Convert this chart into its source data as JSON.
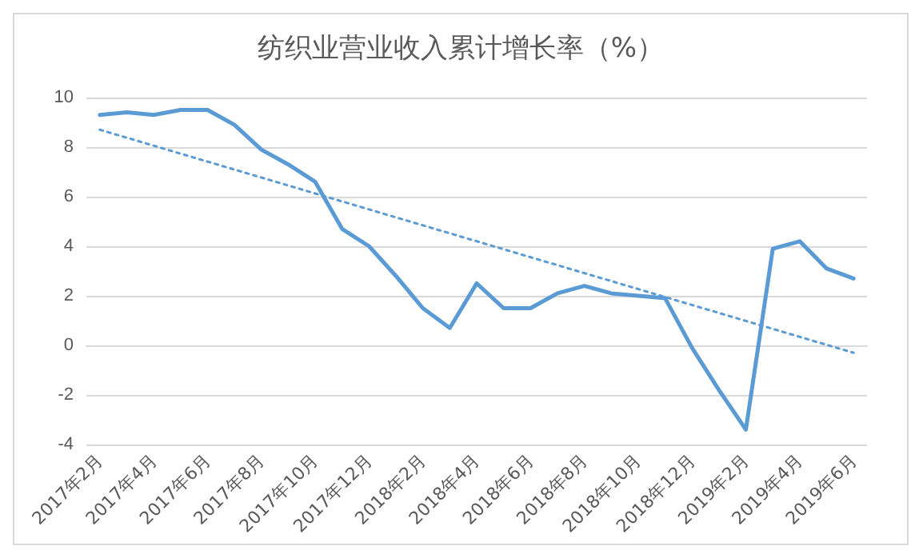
{
  "chart_data": {
    "type": "line",
    "title": "纺织业营业收入累计增长率（%）",
    "categories": [
      "2017年2月",
      null,
      "2017年4月",
      null,
      "2017年6月",
      null,
      "2017年8月",
      null,
      "2017年10月",
      null,
      "2017年12月",
      null,
      "2018年2月",
      null,
      "2018年4月",
      null,
      "2018年6月",
      null,
      "2018年8月",
      null,
      "2018年10月",
      null,
      "2018年12月",
      null,
      "2019年2月",
      null,
      "2019年4月",
      null,
      "2019年6月"
    ],
    "series": [
      {
        "color": "#5b9bd5",
        "line_style": "solid",
        "values": [
          9.3,
          9.4,
          9.3,
          9.5,
          9.5,
          8.9,
          7.9,
          7.3,
          6.6,
          4.7,
          4.0,
          2.8,
          1.5,
          0.7,
          2.5,
          1.5,
          1.5,
          2.1,
          2.4,
          2.1,
          2.0,
          1.9,
          -0.1,
          -1.8,
          -3.4,
          3.9,
          4.2,
          3.1,
          2.7
        ]
      },
      {
        "color": "#5b9bd5",
        "line_style": "dotted",
        "values": [
          8.7,
          null,
          null,
          null,
          null,
          null,
          null,
          null,
          null,
          null,
          null,
          null,
          null,
          null,
          null,
          null,
          null,
          null,
          null,
          null,
          null,
          null,
          null,
          null,
          null,
          null,
          null,
          null,
          -0.3
        ]
      }
    ],
    "ylim": [
      -4,
      10
    ],
    "yticks": [
      -4,
      -2,
      0,
      2,
      4,
      6,
      8,
      10
    ],
    "grid": "y",
    "marker": "none"
  }
}
